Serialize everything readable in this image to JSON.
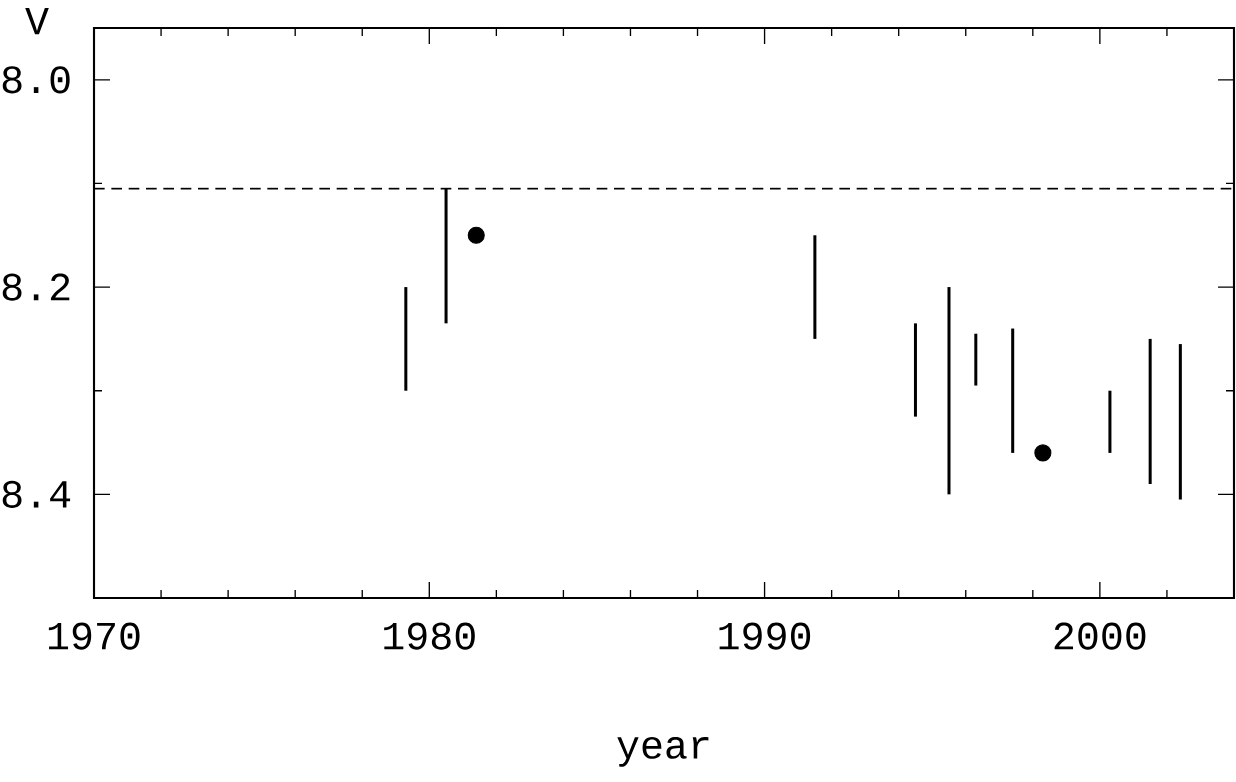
{
  "chart_data": {
    "type": "bar",
    "xlabel": "year",
    "ylabel": "V",
    "xlim": [
      1970,
      2004
    ],
    "ylim": [
      8.5,
      7.95
    ],
    "xticks": [
      1970,
      {
        "value": 1972,
        "label": null
      },
      {
        "value": 1974,
        "label": null
      },
      {
        "value": 1976,
        "label": null
      },
      {
        "value": 1978,
        "label": null
      },
      1980,
      {
        "value": 1982,
        "label": null
      },
      {
        "value": 1984,
        "label": null
      },
      {
        "value": 1986,
        "label": null
      },
      {
        "value": 1988,
        "label": null
      },
      1990,
      {
        "value": 1992,
        "label": null
      },
      {
        "value": 1994,
        "label": null
      },
      {
        "value": 1996,
        "label": null
      },
      {
        "value": 1998,
        "label": null
      },
      2000,
      {
        "value": 2002,
        "label": null
      }
    ],
    "yticks": [
      {
        "value": 8.0,
        "label": "8.0"
      },
      {
        "value": 8.1,
        "label": null
      },
      {
        "value": 8.2,
        "label": "8.2"
      },
      {
        "value": 8.3,
        "label": null
      },
      {
        "value": 8.4,
        "label": "8.4"
      }
    ],
    "series": [
      {
        "color": "#000000",
        "x": [
          1979.3,
          1980.5,
          1991.5,
          1994.5,
          1995.5,
          1996.3,
          1997.4,
          2000.3,
          2001.5,
          2002.4
        ],
        "base": [
          8.2,
          8.105,
          8.15,
          8.235,
          8.2,
          8.245,
          8.24,
          8.3,
          8.25,
          8.255
        ],
        "values": [
          0.1,
          0.13,
          0.1,
          0.09,
          0.2,
          0.05,
          0.12,
          0.06,
          0.14,
          0.15
        ]
      },
      {
        "type": "scatter",
        "color": "#000000",
        "marker": "circle",
        "x": [
          1981.4,
          1998.3
        ],
        "values": [
          8.15,
          8.36
        ]
      }
    ],
    "ref_lines": [
      {
        "axis": "y",
        "value": 8.105,
        "line_style": "dashed",
        "color": "#000000"
      }
    ]
  }
}
